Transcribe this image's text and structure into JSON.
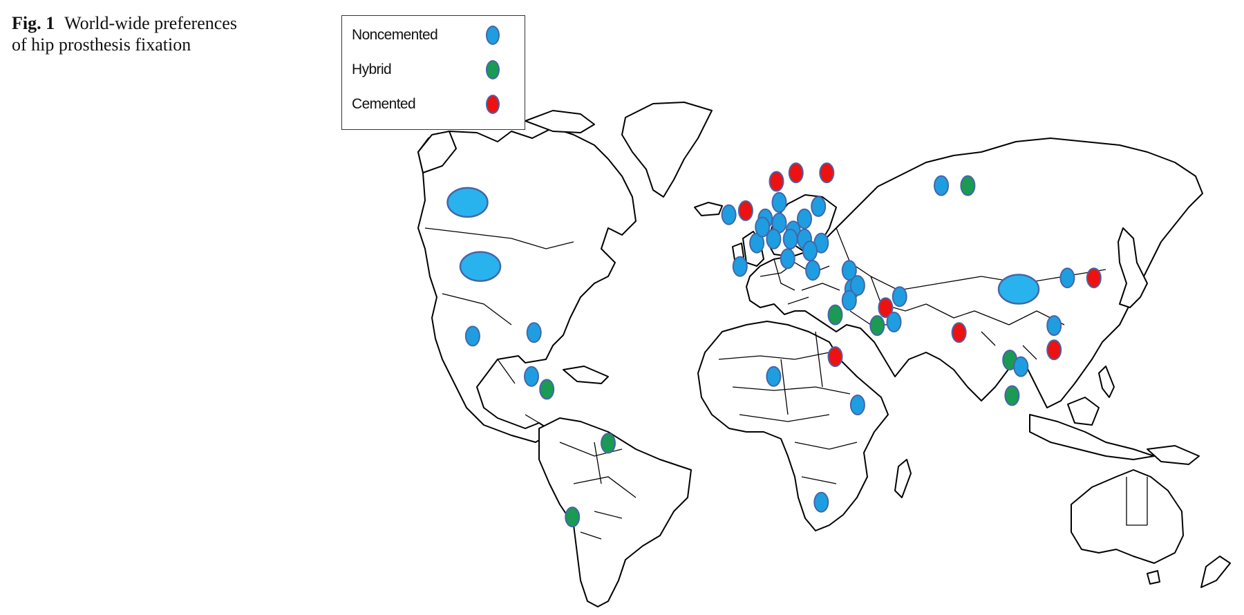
{
  "caption": {
    "figure_number": "Fig. 1",
    "text_line1": "World-wide preferences",
    "text_line2": "of hip prosthesis fixation"
  },
  "legend": {
    "items": [
      {
        "key": "noncemented",
        "label": "Noncemented",
        "color": "#1e9ee0"
      },
      {
        "key": "hybrid",
        "label": "Hybrid",
        "color": "#1a9a52"
      },
      {
        "key": "cemented",
        "label": "Cemented",
        "color": "#ee1111"
      }
    ]
  },
  "colors": {
    "noncemented": "#1e9ee0",
    "noncemented_large": "#29b3ee",
    "hybrid": "#1a9a52",
    "cemented": "#ee1111",
    "marker_ring": "#4466aa"
  },
  "markers": [
    {
      "region": "Canada",
      "type": "noncemented",
      "lat": 56,
      "lon": -105,
      "size": "large"
    },
    {
      "region": "United States",
      "type": "noncemented",
      "lat": 40,
      "lon": -100,
      "size": "large"
    },
    {
      "region": "Mexico",
      "type": "noncemented",
      "lat": 21,
      "lon": -103
    },
    {
      "region": "Cuba",
      "type": "noncemented",
      "lat": 22,
      "lon": -79
    },
    {
      "region": "Panama",
      "type": "noncemented",
      "lat": 9,
      "lon": -80
    },
    {
      "region": "Colombia",
      "type": "hybrid",
      "lat": 5,
      "lon": -74
    },
    {
      "region": "Brazil",
      "type": "hybrid",
      "lat": -12,
      "lon": -50
    },
    {
      "region": "Argentina",
      "type": "hybrid",
      "lat": -33,
      "lon": -64
    },
    {
      "region": "United Kingdom",
      "type": "cemented",
      "lat": 54,
      "lon": -2
    },
    {
      "region": "Ireland",
      "type": "noncemented",
      "lat": 53,
      "lon": -8
    },
    {
      "region": "Norway",
      "type": "cemented",
      "lat": 61,
      "lon": 9
    },
    {
      "region": "Sweden",
      "type": "cemented",
      "lat": 63,
      "lon": 16
    },
    {
      "region": "Finland",
      "type": "cemented",
      "lat": 63,
      "lon": 27
    },
    {
      "region": "Denmark",
      "type": "noncemented",
      "lat": 56,
      "lon": 10
    },
    {
      "region": "Netherlands",
      "type": "noncemented",
      "lat": 52,
      "lon": 5
    },
    {
      "region": "Germany",
      "type": "noncemented",
      "lat": 51,
      "lon": 10
    },
    {
      "region": "Poland",
      "type": "noncemented",
      "lat": 52,
      "lon": 19
    },
    {
      "region": "Lithuania",
      "type": "noncemented",
      "lat": 55,
      "lon": 24
    },
    {
      "region": "France",
      "type": "noncemented",
      "lat": 46,
      "lon": 2
    },
    {
      "region": "Belgium",
      "type": "noncemented",
      "lat": 50,
      "lon": 4
    },
    {
      "region": "Switzerland",
      "type": "noncemented",
      "lat": 47,
      "lon": 8
    },
    {
      "region": "Czech Republic",
      "type": "noncemented",
      "lat": 49,
      "lon": 15
    },
    {
      "region": "Austria",
      "type": "noncemented",
      "lat": 47,
      "lon": 14
    },
    {
      "region": "Hungary",
      "type": "noncemented",
      "lat": 47,
      "lon": 19
    },
    {
      "region": "Romania",
      "type": "noncemented",
      "lat": 46,
      "lon": 25
    },
    {
      "region": "Spain",
      "type": "noncemented",
      "lat": 40,
      "lon": -4
    },
    {
      "region": "Italy",
      "type": "noncemented",
      "lat": 42,
      "lon": 13
    },
    {
      "region": "Serbia",
      "type": "noncemented",
      "lat": 44,
      "lon": 21
    },
    {
      "region": "Greece",
      "type": "noncemented",
      "lat": 39,
      "lon": 22
    },
    {
      "region": "Turkey",
      "type": "noncemented",
      "lat": 39,
      "lon": 35
    },
    {
      "region": "Lebanon",
      "type": "noncemented",
      "lat": 34,
      "lon": 36
    },
    {
      "region": "Syria",
      "type": "noncemented",
      "lat": 35,
      "lon": 38
    },
    {
      "region": "Israel",
      "type": "noncemented",
      "lat": 31,
      "lon": 35
    },
    {
      "region": "Iran",
      "type": "noncemented",
      "lat": 32,
      "lon": 53
    },
    {
      "region": "Egypt",
      "type": "hybrid",
      "lat": 27,
      "lon": 30
    },
    {
      "region": "Saudi Arabia",
      "type": "hybrid",
      "lat": 24,
      "lon": 45
    },
    {
      "region": "Kuwait",
      "type": "cemented",
      "lat": 29,
      "lon": 48
    },
    {
      "region": "Qatar",
      "type": "noncemented",
      "lat": 25,
      "lon": 51
    },
    {
      "region": "Sudan",
      "type": "cemented",
      "lat": 15,
      "lon": 30
    },
    {
      "region": "Nigeria",
      "type": "noncemented",
      "lat": 9,
      "lon": 8
    },
    {
      "region": "Kenya",
      "type": "noncemented",
      "lat": 0,
      "lon": 38
    },
    {
      "region": "South Africa",
      "type": "noncemented",
      "lat": -29,
      "lon": 25
    },
    {
      "region": "Russia West",
      "type": "noncemented",
      "lat": 60,
      "lon": 70
    },
    {
      "region": "Russia East",
      "type": "hybrid",
      "lat": 60,
      "lon": 82
    },
    {
      "region": "India",
      "type": "cemented",
      "lat": 22,
      "lon": 78
    },
    {
      "region": "China",
      "type": "noncemented",
      "lat": 34,
      "lon": 105,
      "size": "large"
    },
    {
      "region": "Korea",
      "type": "noncemented",
      "lat": 37,
      "lon": 127
    },
    {
      "region": "Japan",
      "type": "cemented",
      "lat": 37,
      "lon": 139
    },
    {
      "region": "Taiwan",
      "type": "noncemented",
      "lat": 24,
      "lon": 121
    },
    {
      "region": "Hong Kong",
      "type": "cemented",
      "lat": 17,
      "lon": 121
    },
    {
      "region": "Thailand",
      "type": "hybrid",
      "lat": 14,
      "lon": 101
    },
    {
      "region": "Vietnam",
      "type": "noncemented",
      "lat": 12,
      "lon": 106
    },
    {
      "region": "Malaysia",
      "type": "hybrid",
      "lat": 3,
      "lon": 102
    }
  ]
}
